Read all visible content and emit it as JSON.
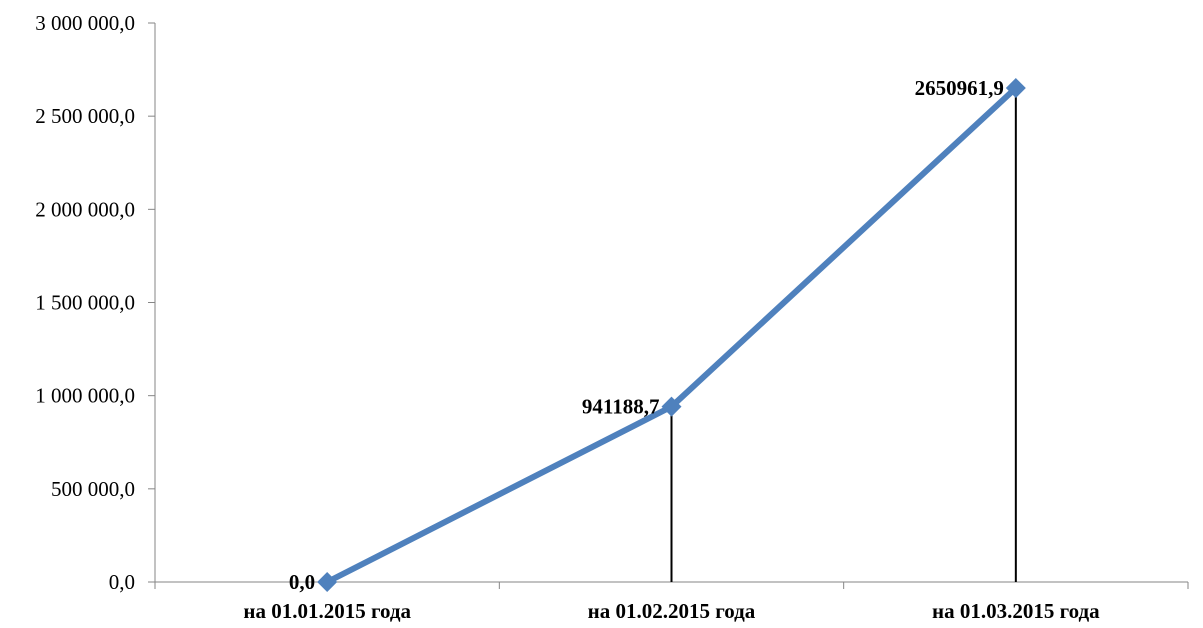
{
  "chart_data": {
    "type": "line",
    "categories": [
      "на 01.01.2015 года",
      "на 01.02.2015 года",
      "на 01.03.2015 года"
    ],
    "values": [
      0,
      941188.7,
      2650961.9
    ],
    "data_labels": [
      "0,0",
      "941188,7",
      "2650961,9"
    ],
    "y_ticks": [
      {
        "value": 0,
        "label": "0,0"
      },
      {
        "value": 500000,
        "label": "500 000,0"
      },
      {
        "value": 1000000,
        "label": "1 000 000,0"
      },
      {
        "value": 1500000,
        "label": "1 500 000,0"
      },
      {
        "value": 2000000,
        "label": "2 000 000,0"
      },
      {
        "value": 2500000,
        "label": "2 500 000,0"
      },
      {
        "value": 3000000,
        "label": "3 000 000,0"
      }
    ],
    "ylim": [
      0,
      3000000
    ],
    "title": "",
    "xlabel": "",
    "ylabel": "",
    "grid": false,
    "legend": "none",
    "drop_lines": true,
    "marker": "diamond",
    "colors": {
      "series": "#4F81BD",
      "axis": "#868686",
      "drop_line": "#000000"
    }
  }
}
